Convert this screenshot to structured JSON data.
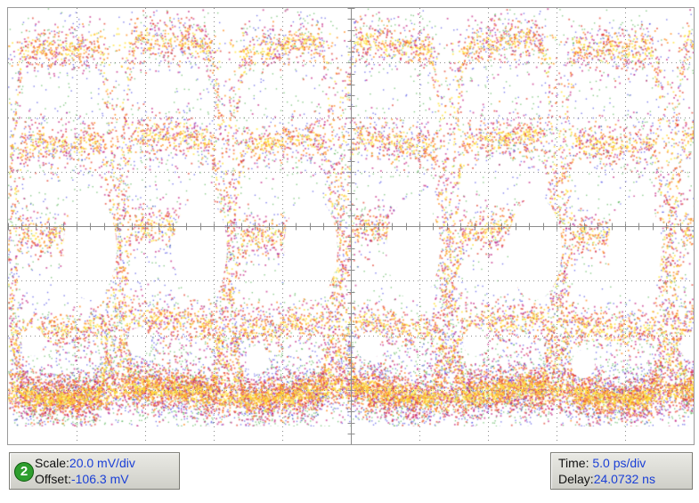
{
  "channel": {
    "number": "2",
    "scale_label": "Scale:",
    "scale_value": "20.0 mV/div",
    "offset_label": "Offset:",
    "offset_value": "-106.3 mV"
  },
  "timebase": {
    "time_label": "Time:",
    "time_value": "5.0 ps/div",
    "delay_label": "Delay:",
    "delay_value": "24.0732 ns"
  },
  "colors": {
    "trace_hot": "#ffe23a",
    "trace_mid": "#ff8a1a",
    "trace_warm": "#e23a2a",
    "trace_cool": "#c0147a",
    "trace_cold": "#2a2ae0",
    "trace_edge": "#2aa02a",
    "value_text": "#1a3fd6",
    "channel_badge": "#2e9e2e"
  },
  "icons": {
    "channel_badge": "channel-number-badge"
  }
}
